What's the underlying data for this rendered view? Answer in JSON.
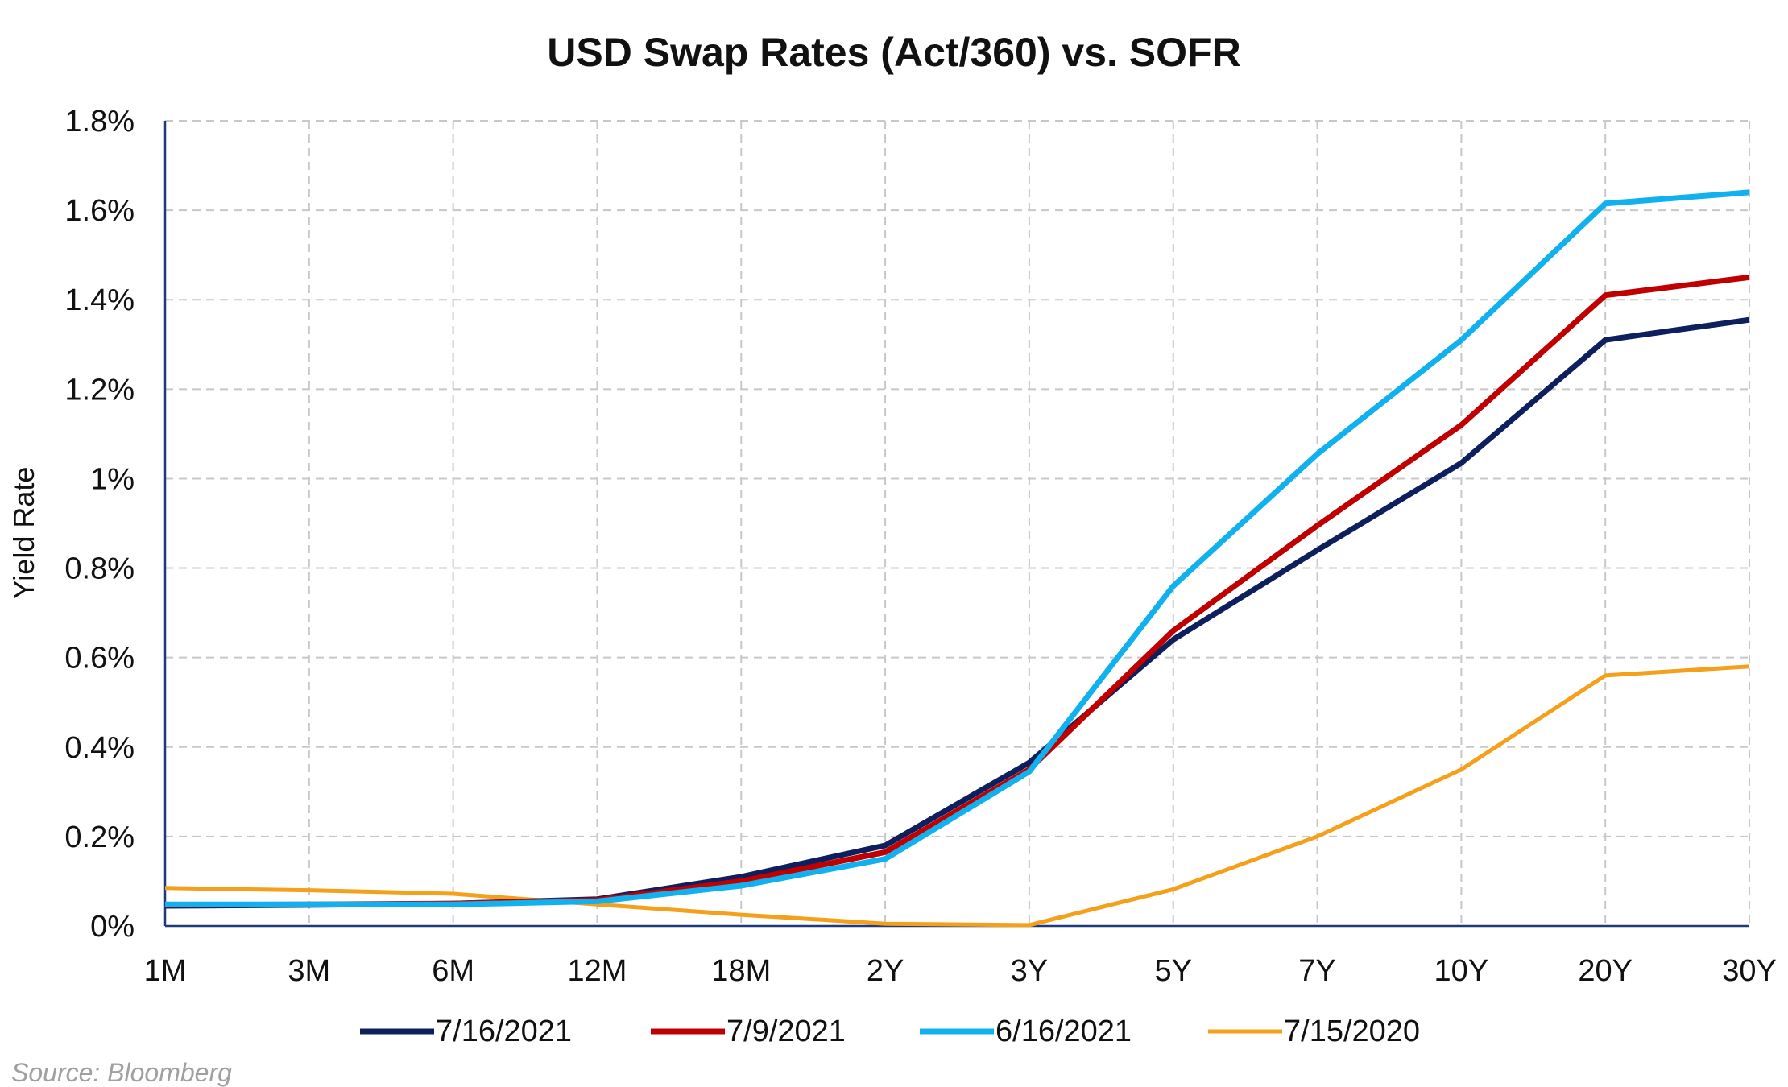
{
  "chart_data": {
    "type": "line",
    "title": "USD Swap Rates (Act/360) vs. SOFR",
    "xlabel": "",
    "ylabel": "Yield Rate",
    "categories": [
      "1M",
      "3M",
      "6M",
      "12M",
      "18M",
      "2Y",
      "3Y",
      "5Y",
      "7Y",
      "10Y",
      "20Y",
      "30Y"
    ],
    "ylim": [
      0,
      1.8
    ],
    "y_ticks": [
      0,
      0.2,
      0.4,
      0.6,
      0.8,
      1.0,
      1.2,
      1.4,
      1.6,
      1.8
    ],
    "y_tick_labels": [
      "0%",
      "0.2%",
      "0.4%",
      "0.6%",
      "0.8%",
      "1%",
      "1.2%",
      "1.4%",
      "1.6%",
      "1.8%"
    ],
    "grid": true,
    "legend_position": "bottom",
    "series": [
      {
        "name": "7/16/2021",
        "color": "#0d1f5c",
        "values": [
          0.045,
          0.047,
          0.05,
          0.06,
          0.11,
          0.18,
          0.365,
          0.64,
          0.84,
          1.035,
          1.31,
          1.355
        ]
      },
      {
        "name": "7/9/2021",
        "color": "#c00000",
        "values": [
          0.047,
          0.048,
          0.05,
          0.058,
          0.1,
          0.165,
          0.35,
          0.66,
          0.895,
          1.12,
          1.41,
          1.45
        ]
      },
      {
        "name": "6/16/2021",
        "color": "#11b0ef",
        "values": [
          0.048,
          0.048,
          0.048,
          0.055,
          0.09,
          0.15,
          0.345,
          0.76,
          1.055,
          1.31,
          1.615,
          1.64
        ]
      },
      {
        "name": "7/15/2020",
        "color": "#f5a01a",
        "values": [
          0.085,
          0.08,
          0.072,
          0.048,
          0.025,
          0.005,
          0.002,
          0.082,
          0.2,
          0.35,
          0.56,
          0.58
        ]
      }
    ]
  },
  "source_note": "Source: Bloomberg"
}
